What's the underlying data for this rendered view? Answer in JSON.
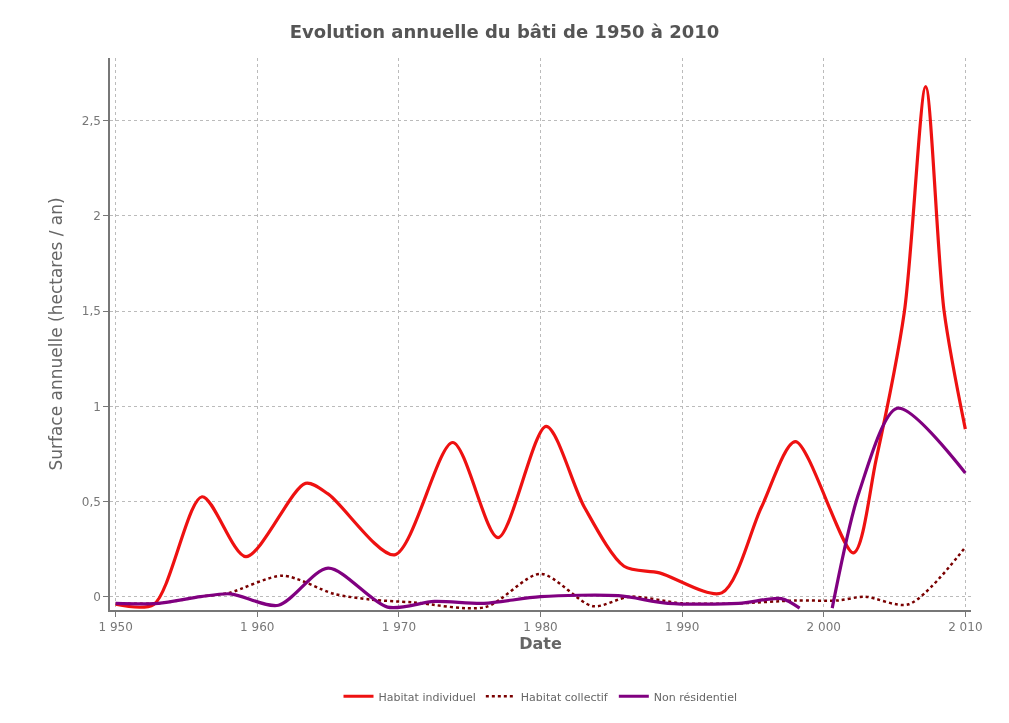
{
  "chart_data": {
    "type": "line",
    "title": "Evolution annuelle du bâti de 1950 à 2010",
    "xlabel": "Date",
    "ylabel": "Surface annuelle (hectares / an)",
    "series": [
      {
        "name": "Habitat individuel",
        "color": "#ee1111",
        "line_style": "solid",
        "x": [
          1950,
          1952.7,
          1956.1,
          1959.2,
          1963.4,
          1965,
          1969.7,
          1973.8,
          1977,
          1980.4,
          1983.1,
          1985.9,
          1988.4,
          1992.8,
          1995.6,
          1998,
          2002.1,
          2003.7,
          2005.7,
          2007.2,
          2008.5,
          2010
        ],
        "values": [
          -0.04,
          -0.04,
          0.525,
          0.21,
          0.595,
          0.54,
          0.22,
          0.81,
          0.31,
          0.895,
          0.47,
          0.16,
          0.125,
          0.02,
          0.47,
          0.815,
          0.23,
          0.72,
          1.5,
          2.68,
          1.5,
          0.88
        ]
      },
      {
        "name": "Habitat collectif",
        "color": "#7a0000",
        "line_style": "dotted",
        "x": [
          1950,
          1953,
          1956,
          1958,
          1961.8,
          1965.4,
          1968,
          1971,
          1976.1,
          1980,
          1983.7,
          1986.3,
          1990,
          1994,
          1998,
          2001,
          2002.9,
          2006,
          2010
        ],
        "values": [
          -0.035,
          -0.035,
          0,
          0.02,
          0.11,
          0.015,
          -0.015,
          -0.03,
          -0.055,
          0.12,
          -0.05,
          0,
          -0.035,
          -0.035,
          -0.02,
          -0.02,
          0,
          -0.04,
          0.26
        ]
      },
      {
        "name": "Non résidentiel",
        "color": "#800080",
        "line_style": "solid",
        "x": [
          1950,
          1953,
          1956,
          1958.1,
          1961.5,
          1965,
          1969.2,
          1972.5,
          1976,
          1980,
          1985.5,
          1989,
          1994,
          1997,
          1998.3,
          1999.5,
          2000.6,
          2002.5,
          2005.2,
          2010
        ],
        "values": [
          -0.035,
          -0.035,
          0,
          0.015,
          -0.045,
          0.15,
          -0.055,
          -0.025,
          -0.035,
          0,
          0.005,
          -0.035,
          -0.035,
          -0.01,
          -0.06,
          null,
          -0.06,
          0.55,
          0.99,
          0.65
        ]
      }
    ],
    "xlim": [
      1949.6,
      2010.4
    ],
    "xticks": [
      {
        "value": 1950,
        "label": "1 950"
      },
      {
        "value": 1960,
        "label": "1 960"
      },
      {
        "value": 1970,
        "label": "1 970"
      },
      {
        "value": 1980,
        "label": "1 980"
      },
      {
        "value": 1990,
        "label": "1 990"
      },
      {
        "value": 2000,
        "label": "2 000"
      },
      {
        "value": 2010,
        "label": "2 010"
      }
    ],
    "ylim": [
      -0.07,
      2.83
    ],
    "yticks": [
      0,
      {
        "value": 0.5,
        "label": "0,5"
      },
      1,
      {
        "value": 1.5,
        "label": "1,5"
      },
      2,
      {
        "value": 2.5,
        "label": "2,5"
      }
    ],
    "grid": true,
    "legend": "bottom"
  }
}
